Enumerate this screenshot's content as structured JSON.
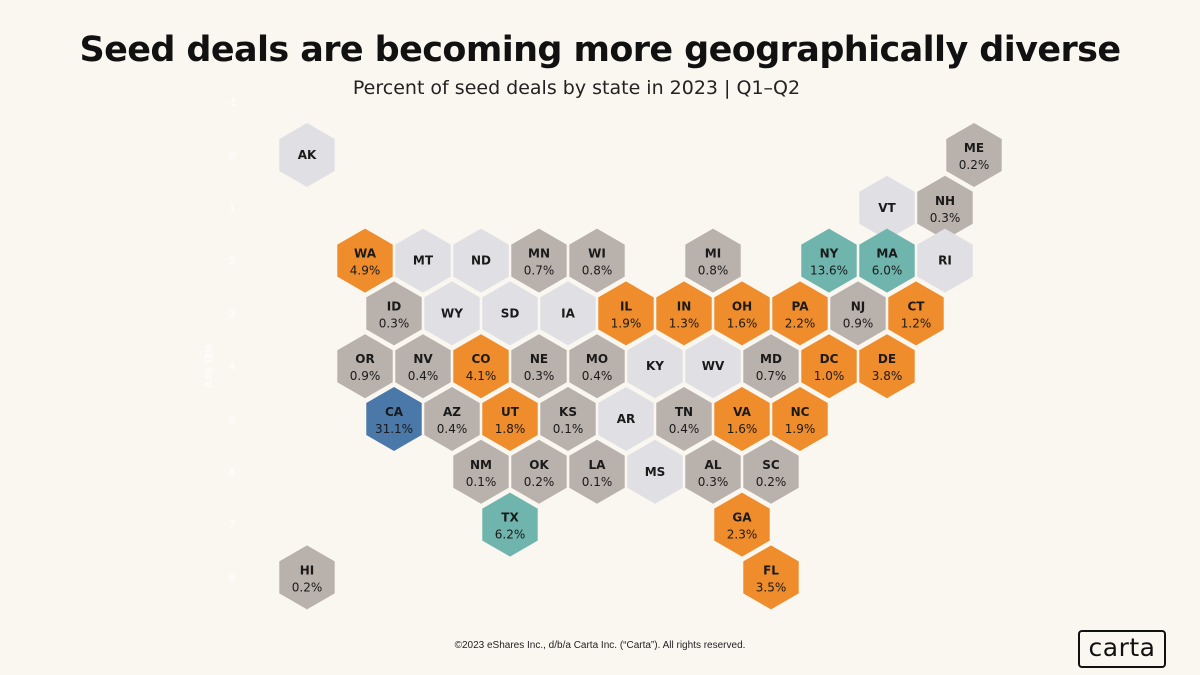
{
  "header": {
    "title": "Seed deals are becoming more geographically diverse",
    "subtitle": "Percent of seed deals by state in 2023 | Q1–Q2"
  },
  "footer": {
    "copyright": "©2023 eShares Inc., d/b/a Carta Inc. (“Carta”). All rights reserved."
  },
  "brand": {
    "logo_text": "carta"
  },
  "colors": {
    "background": "#faf7f1",
    "light": "#e0dfe4",
    "gray": "#b9b1ac",
    "orange": "#ef8c2b",
    "teal": "#6fb5ad",
    "blue": "#4a78a8"
  },
  "chart_data": {
    "type": "hex-tile-map",
    "title": "Seed deals are becoming more geographically diverse",
    "subtitle": "Percent of seed deals by state in 2023 | Q1–Q2",
    "yaxis_label": "Axis Title",
    "yaxis_ticks": [
      "-1",
      "0",
      "1",
      "2",
      "3",
      "4",
      "5",
      "6",
      "7",
      "8"
    ],
    "states": [
      {
        "code": "AK",
        "value": null,
        "color": "light",
        "row": 0,
        "col": 0
      },
      {
        "code": "ME",
        "value": "0.2%",
        "color": "gray",
        "row": 0,
        "col": 11.5
      },
      {
        "code": "VT",
        "value": null,
        "color": "light",
        "row": 1,
        "col": 10
      },
      {
        "code": "NH",
        "value": "0.3%",
        "color": "gray",
        "row": 1,
        "col": 11
      },
      {
        "code": "WA",
        "value": "4.9%",
        "color": "orange",
        "row": 2,
        "col": 1
      },
      {
        "code": "MT",
        "value": null,
        "color": "light",
        "row": 2,
        "col": 2
      },
      {
        "code": "ND",
        "value": null,
        "color": "light",
        "row": 2,
        "col": 3
      },
      {
        "code": "MN",
        "value": "0.7%",
        "color": "gray",
        "row": 2,
        "col": 4
      },
      {
        "code": "WI",
        "value": "0.8%",
        "color": "gray",
        "row": 2,
        "col": 5
      },
      {
        "code": "MI",
        "value": "0.8%",
        "color": "gray",
        "row": 2,
        "col": 7
      },
      {
        "code": "NY",
        "value": "13.6%",
        "color": "teal",
        "row": 2,
        "col": 9
      },
      {
        "code": "MA",
        "value": "6.0%",
        "color": "teal",
        "row": 2,
        "col": 10
      },
      {
        "code": "RI",
        "value": null,
        "color": "light",
        "row": 2,
        "col": 11
      },
      {
        "code": "ID",
        "value": "0.3%",
        "color": "gray",
        "row": 3,
        "col": 1.5
      },
      {
        "code": "WY",
        "value": null,
        "color": "light",
        "row": 3,
        "col": 2.5
      },
      {
        "code": "SD",
        "value": null,
        "color": "light",
        "row": 3,
        "col": 3.5
      },
      {
        "code": "IA",
        "value": null,
        "color": "light",
        "row": 3,
        "col": 4.5
      },
      {
        "code": "IL",
        "value": "1.9%",
        "color": "orange",
        "row": 3,
        "col": 5.5
      },
      {
        "code": "IN",
        "value": "1.3%",
        "color": "orange",
        "row": 3,
        "col": 6.5
      },
      {
        "code": "OH",
        "value": "1.6%",
        "color": "orange",
        "row": 3,
        "col": 7.5
      },
      {
        "code": "PA",
        "value": "2.2%",
        "color": "orange",
        "row": 3,
        "col": 8.5
      },
      {
        "code": "NJ",
        "value": "0.9%",
        "color": "gray",
        "row": 3,
        "col": 9.5
      },
      {
        "code": "CT",
        "value": "1.2%",
        "color": "orange",
        "row": 3,
        "col": 10.5
      },
      {
        "code": "OR",
        "value": "0.9%",
        "color": "gray",
        "row": 4,
        "col": 1
      },
      {
        "code": "NV",
        "value": "0.4%",
        "color": "gray",
        "row": 4,
        "col": 2
      },
      {
        "code": "CO",
        "value": "4.1%",
        "color": "orange",
        "row": 4,
        "col": 3
      },
      {
        "code": "NE",
        "value": "0.3%",
        "color": "gray",
        "row": 4,
        "col": 4
      },
      {
        "code": "MO",
        "value": "0.4%",
        "color": "gray",
        "row": 4,
        "col": 5
      },
      {
        "code": "KY",
        "value": null,
        "color": "light",
        "row": 4,
        "col": 6
      },
      {
        "code": "WV",
        "value": null,
        "color": "light",
        "row": 4,
        "col": 7
      },
      {
        "code": "MD",
        "value": "0.7%",
        "color": "gray",
        "row": 4,
        "col": 8
      },
      {
        "code": "DC",
        "value": "1.0%",
        "color": "orange",
        "row": 4,
        "col": 9
      },
      {
        "code": "DE",
        "value": "3.8%",
        "color": "orange",
        "row": 4,
        "col": 10
      },
      {
        "code": "CA",
        "value": "31.1%",
        "color": "blue",
        "row": 5,
        "col": 1.5
      },
      {
        "code": "AZ",
        "value": "0.4%",
        "color": "gray",
        "row": 5,
        "col": 2.5
      },
      {
        "code": "UT",
        "value": "1.8%",
        "color": "orange",
        "row": 5,
        "col": 3.5
      },
      {
        "code": "KS",
        "value": "0.1%",
        "color": "gray",
        "row": 5,
        "col": 4.5
      },
      {
        "code": "AR",
        "value": null,
        "color": "light",
        "row": 5,
        "col": 5.5
      },
      {
        "code": "TN",
        "value": "0.4%",
        "color": "gray",
        "row": 5,
        "col": 6.5
      },
      {
        "code": "VA",
        "value": "1.6%",
        "color": "orange",
        "row": 5,
        "col": 7.5
      },
      {
        "code": "NC",
        "value": "1.9%",
        "color": "orange",
        "row": 5,
        "col": 8.5
      },
      {
        "code": "NM",
        "value": "0.1%",
        "color": "gray",
        "row": 6,
        "col": 3
      },
      {
        "code": "OK",
        "value": "0.2%",
        "color": "gray",
        "row": 6,
        "col": 4
      },
      {
        "code": "LA",
        "value": "0.1%",
        "color": "gray",
        "row": 6,
        "col": 5
      },
      {
        "code": "MS",
        "value": null,
        "color": "light",
        "row": 6,
        "col": 6
      },
      {
        "code": "AL",
        "value": "0.3%",
        "color": "gray",
        "row": 6,
        "col": 7
      },
      {
        "code": "SC",
        "value": "0.2%",
        "color": "gray",
        "row": 6,
        "col": 8
      },
      {
        "code": "TX",
        "value": "6.2%",
        "color": "teal",
        "row": 7,
        "col": 3.5
      },
      {
        "code": "GA",
        "value": "2.3%",
        "color": "orange",
        "row": 7,
        "col": 7.5
      },
      {
        "code": "HI",
        "value": "0.2%",
        "color": "gray",
        "row": 8,
        "col": 0
      },
      {
        "code": "FL",
        "value": "3.5%",
        "color": "orange",
        "row": 8,
        "col": 8
      }
    ]
  }
}
